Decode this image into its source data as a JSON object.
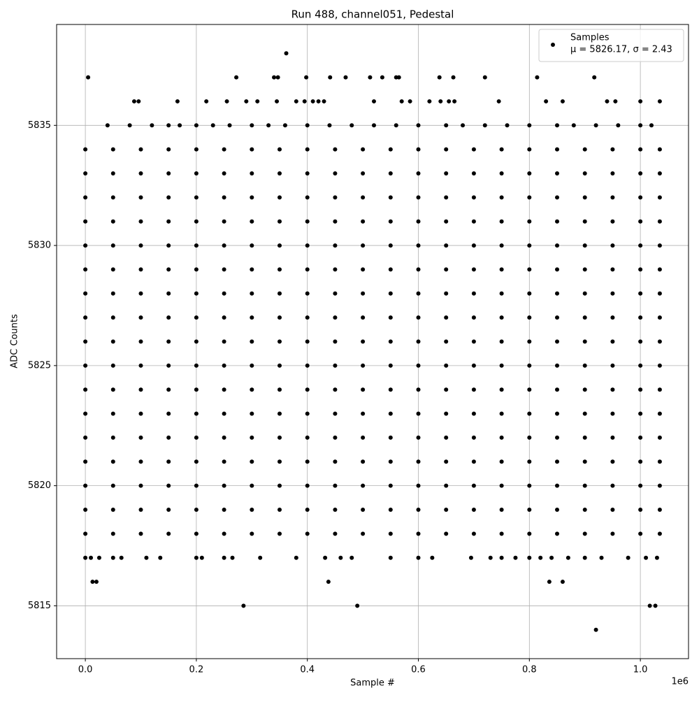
{
  "chart_data": {
    "type": "scatter",
    "title": "Run 488, channel051, Pedestal",
    "x_label": "Sample #",
    "y_label": "ADC Counts",
    "x_offset_label": "1e6",
    "legend_stats": "μ = 5826.17, σ = 2.43",
    "legend": "upper right",
    "grid": true,
    "xlim": [
      -51750,
      1086750
    ],
    "ylim": [
      5812.8,
      5839.2
    ],
    "xticks": [
      {
        "value": 0,
        "label": "0.0"
      },
      {
        "value": 200000,
        "label": "0.2"
      },
      {
        "value": 400000,
        "label": "0.4"
      },
      {
        "value": 600000,
        "label": "0.6"
      },
      {
        "value": 800000,
        "label": "0.8"
      },
      {
        "value": 1000000,
        "label": "1.0"
      }
    ],
    "yticks": [
      5815,
      5820,
      5825,
      5830,
      5835
    ],
    "series": [
      {
        "name": "Samples",
        "color": "#000000",
        "x": [
          0,
          50000,
          100000,
          150000,
          200000,
          250000,
          300000,
          350000,
          400000,
          450000,
          500000,
          550000,
          600000,
          650000,
          700000,
          750000,
          800000,
          850000,
          900000,
          950000,
          1000000,
          1035000,
          0,
          50000,
          100000,
          150000,
          200000,
          250000,
          300000,
          350000,
          400000,
          450000,
          500000,
          550000,
          600000,
          650000,
          700000,
          750000,
          800000,
          850000,
          900000,
          950000,
          1000000,
          1035000,
          0,
          50000,
          100000,
          150000,
          200000,
          250000,
          300000,
          350000,
          400000,
          450000,
          500000,
          550000,
          600000,
          650000,
          700000,
          750000,
          800000,
          850000,
          900000,
          950000,
          1000000,
          1035000,
          0,
          50000,
          100000,
          150000,
          200000,
          250000,
          300000,
          350000,
          400000,
          450000,
          500000,
          550000,
          600000,
          650000,
          700000,
          750000,
          800000,
          850000,
          900000,
          950000,
          1000000,
          1035000,
          0,
          50000,
          100000,
          150000,
          200000,
          250000,
          300000,
          350000,
          400000,
          450000,
          500000,
          550000,
          600000,
          650000,
          700000,
          750000,
          800000,
          850000,
          900000,
          950000,
          1000000,
          1035000,
          0,
          50000,
          100000,
          150000,
          200000,
          250000,
          300000,
          350000,
          400000,
          450000,
          500000,
          550000,
          600000,
          650000,
          700000,
          750000,
          800000,
          850000,
          900000,
          950000,
          1000000,
          1035000,
          0,
          50000,
          100000,
          150000,
          200000,
          250000,
          300000,
          350000,
          400000,
          450000,
          500000,
          550000,
          600000,
          650000,
          700000,
          750000,
          800000,
          850000,
          900000,
          950000,
          1000000,
          1035000,
          0,
          50000,
          100000,
          150000,
          200000,
          250000,
          300000,
          350000,
          400000,
          450000,
          500000,
          550000,
          600000,
          650000,
          700000,
          750000,
          800000,
          850000,
          900000,
          950000,
          1000000,
          1035000,
          0,
          50000,
          100000,
          150000,
          200000,
          250000,
          300000,
          350000,
          400000,
          450000,
          500000,
          550000,
          600000,
          650000,
          700000,
          750000,
          800000,
          850000,
          900000,
          950000,
          1000000,
          1035000,
          0,
          50000,
          100000,
          150000,
          200000,
          250000,
          300000,
          350000,
          400000,
          450000,
          500000,
          550000,
          600000,
          650000,
          700000,
          750000,
          800000,
          850000,
          900000,
          950000,
          1000000,
          1035000,
          0,
          50000,
          100000,
          150000,
          200000,
          250000,
          300000,
          350000,
          400000,
          450000,
          500000,
          550000,
          600000,
          650000,
          700000,
          750000,
          800000,
          850000,
          900000,
          950000,
          1000000,
          1035000,
          0,
          50000,
          100000,
          150000,
          200000,
          250000,
          300000,
          350000,
          400000,
          450000,
          500000,
          550000,
          600000,
          650000,
          700000,
          750000,
          800000,
          850000,
          900000,
          950000,
          1000000,
          1035000,
          0,
          50000,
          100000,
          150000,
          200000,
          250000,
          300000,
          350000,
          400000,
          450000,
          500000,
          550000,
          600000,
          650000,
          700000,
          750000,
          800000,
          850000,
          900000,
          950000,
          1000000,
          1035000,
          0,
          50000,
          100000,
          150000,
          200000,
          250000,
          300000,
          350000,
          400000,
          450000,
          500000,
          550000,
          600000,
          650000,
          700000,
          750000,
          800000,
          850000,
          900000,
          950000,
          1000000,
          1035000,
          0,
          50000,
          100000,
          150000,
          200000,
          250000,
          300000,
          350000,
          400000,
          450000,
          500000,
          550000,
          600000,
          650000,
          700000,
          750000,
          800000,
          850000,
          900000,
          950000,
          1000000,
          1035000,
          0,
          50000,
          100000,
          150000,
          200000,
          250000,
          300000,
          350000,
          400000,
          450000,
          500000,
          550000,
          600000,
          650000,
          700000,
          750000,
          800000,
          850000,
          900000,
          950000,
          1000000,
          1035000,
          0,
          50000,
          100000,
          150000,
          200000,
          250000,
          300000,
          350000,
          400000,
          450000,
          500000,
          550000,
          600000,
          650000,
          700000,
          750000,
          800000,
          850000,
          900000,
          950000,
          1000000,
          1035000,
          40000,
          80000,
          120000,
          150000,
          170000,
          200000,
          230000,
          260000,
          300000,
          330000,
          360000,
          400000,
          440000,
          480000,
          520000,
          560000,
          600000,
          650000,
          680000,
          720000,
          760000,
          800000,
          850000,
          880000,
          920000,
          960000,
          1000000,
          1020000,
          88000,
          96000,
          166000,
          218000,
          255000,
          290000,
          310000,
          345000,
          380000,
          395000,
          410000,
          420000,
          430000,
          520000,
          570000,
          585000,
          620000,
          640000,
          655000,
          665000,
          745000,
          830000,
          860000,
          940000,
          955000,
          1000000,
          1035000,
          5000,
          272000,
          340000,
          347000,
          398000,
          441000,
          469000,
          513000,
          535000,
          560000,
          565000,
          638000,
          663000,
          720000,
          814000,
          917000,
          362000,
          0,
          10000,
          25000,
          50000,
          65000,
          110000,
          135000,
          200000,
          210000,
          250000,
          265000,
          315000,
          380000,
          432000,
          460000,
          480000,
          550000,
          600000,
          625000,
          695000,
          730000,
          750000,
          775000,
          800000,
          820000,
          840000,
          870000,
          900000,
          930000,
          978000,
          1010000,
          1030000,
          13000,
          20000,
          438000,
          836000,
          860000,
          285000,
          490000,
          1017000,
          1027000,
          920000
        ],
        "values": [
          5818,
          5818,
          5818,
          5818,
          5818,
          5818,
          5818,
          5818,
          5818,
          5818,
          5818,
          5818,
          5818,
          5818,
          5818,
          5818,
          5818,
          5818,
          5818,
          5818,
          5818,
          5818,
          5819,
          5819,
          5819,
          5819,
          5819,
          5819,
          5819,
          5819,
          5819,
          5819,
          5819,
          5819,
          5819,
          5819,
          5819,
          5819,
          5819,
          5819,
          5819,
          5819,
          5819,
          5819,
          5820,
          5820,
          5820,
          5820,
          5820,
          5820,
          5820,
          5820,
          5820,
          5820,
          5820,
          5820,
          5820,
          5820,
          5820,
          5820,
          5820,
          5820,
          5820,
          5820,
          5820,
          5820,
          5821,
          5821,
          5821,
          5821,
          5821,
          5821,
          5821,
          5821,
          5821,
          5821,
          5821,
          5821,
          5821,
          5821,
          5821,
          5821,
          5821,
          5821,
          5821,
          5821,
          5821,
          5821,
          5822,
          5822,
          5822,
          5822,
          5822,
          5822,
          5822,
          5822,
          5822,
          5822,
          5822,
          5822,
          5822,
          5822,
          5822,
          5822,
          5822,
          5822,
          5822,
          5822,
          5822,
          5822,
          5823,
          5823,
          5823,
          5823,
          5823,
          5823,
          5823,
          5823,
          5823,
          5823,
          5823,
          5823,
          5823,
          5823,
          5823,
          5823,
          5823,
          5823,
          5823,
          5823,
          5823,
          5823,
          5824,
          5824,
          5824,
          5824,
          5824,
          5824,
          5824,
          5824,
          5824,
          5824,
          5824,
          5824,
          5824,
          5824,
          5824,
          5824,
          5824,
          5824,
          5824,
          5824,
          5824,
          5824,
          5825,
          5825,
          5825,
          5825,
          5825,
          5825,
          5825,
          5825,
          5825,
          5825,
          5825,
          5825,
          5825,
          5825,
          5825,
          5825,
          5825,
          5825,
          5825,
          5825,
          5825,
          5825,
          5826,
          5826,
          5826,
          5826,
          5826,
          5826,
          5826,
          5826,
          5826,
          5826,
          5826,
          5826,
          5826,
          5826,
          5826,
          5826,
          5826,
          5826,
          5826,
          5826,
          5826,
          5826,
          5827,
          5827,
          5827,
          5827,
          5827,
          5827,
          5827,
          5827,
          5827,
          5827,
          5827,
          5827,
          5827,
          5827,
          5827,
          5827,
          5827,
          5827,
          5827,
          5827,
          5827,
          5827,
          5828,
          5828,
          5828,
          5828,
          5828,
          5828,
          5828,
          5828,
          5828,
          5828,
          5828,
          5828,
          5828,
          5828,
          5828,
          5828,
          5828,
          5828,
          5828,
          5828,
          5828,
          5828,
          5829,
          5829,
          5829,
          5829,
          5829,
          5829,
          5829,
          5829,
          5829,
          5829,
          5829,
          5829,
          5829,
          5829,
          5829,
          5829,
          5829,
          5829,
          5829,
          5829,
          5829,
          5829,
          5830,
          5830,
          5830,
          5830,
          5830,
          5830,
          5830,
          5830,
          5830,
          5830,
          5830,
          5830,
          5830,
          5830,
          5830,
          5830,
          5830,
          5830,
          5830,
          5830,
          5830,
          5830,
          5831,
          5831,
          5831,
          5831,
          5831,
          5831,
          5831,
          5831,
          5831,
          5831,
          5831,
          5831,
          5831,
          5831,
          5831,
          5831,
          5831,
          5831,
          5831,
          5831,
          5831,
          5831,
          5832,
          5832,
          5832,
          5832,
          5832,
          5832,
          5832,
          5832,
          5832,
          5832,
          5832,
          5832,
          5832,
          5832,
          5832,
          5832,
          5832,
          5832,
          5832,
          5832,
          5832,
          5832,
          5833,
          5833,
          5833,
          5833,
          5833,
          5833,
          5833,
          5833,
          5833,
          5833,
          5833,
          5833,
          5833,
          5833,
          5833,
          5833,
          5833,
          5833,
          5833,
          5833,
          5833,
          5833,
          5834,
          5834,
          5834,
          5834,
          5834,
          5834,
          5834,
          5834,
          5834,
          5834,
          5834,
          5834,
          5834,
          5834,
          5834,
          5834,
          5834,
          5834,
          5834,
          5834,
          5834,
          5834,
          5835,
          5835,
          5835,
          5835,
          5835,
          5835,
          5835,
          5835,
          5835,
          5835,
          5835,
          5835,
          5835,
          5835,
          5835,
          5835,
          5835,
          5835,
          5835,
          5835,
          5835,
          5835,
          5835,
          5835,
          5835,
          5835,
          5835,
          5835,
          5836,
          5836,
          5836,
          5836,
          5836,
          5836,
          5836,
          5836,
          5836,
          5836,
          5836,
          5836,
          5836,
          5836,
          5836,
          5836,
          5836,
          5836,
          5836,
          5836,
          5836,
          5836,
          5836,
          5836,
          5836,
          5836,
          5836,
          5837,
          5837,
          5837,
          5837,
          5837,
          5837,
          5837,
          5837,
          5837,
          5837,
          5837,
          5837,
          5837,
          5837,
          5837,
          5837,
          5838,
          5817,
          5817,
          5817,
          5817,
          5817,
          5817,
          5817,
          5817,
          5817,
          5817,
          5817,
          5817,
          5817,
          5817,
          5817,
          5817,
          5817,
          5817,
          5817,
          5817,
          5817,
          5817,
          5817,
          5817,
          5817,
          5817,
          5817,
          5817,
          5817,
          5817,
          5817,
          5817,
          5816,
          5816,
          5816,
          5816,
          5816,
          5815,
          5815,
          5815,
          5815,
          5814
        ]
      }
    ]
  }
}
